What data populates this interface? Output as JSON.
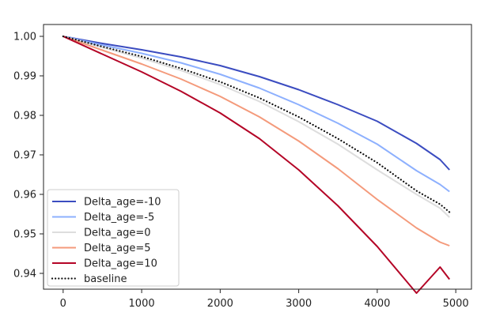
{
  "chart_data": {
    "type": "line",
    "title": "",
    "xlabel": "",
    "ylabel": "",
    "xlim": [
      -250,
      5200
    ],
    "ylim": [
      0.936,
      1.003
    ],
    "x_ticks": [
      0,
      1000,
      2000,
      3000,
      4000,
      5000
    ],
    "x_tick_labels": [
      "0",
      "1000",
      "2000",
      "3000",
      "4000",
      "5000"
    ],
    "y_ticks": [
      0.94,
      0.95,
      0.96,
      0.97,
      0.98,
      0.99,
      1.0
    ],
    "y_tick_labels": [
      "0.94",
      "0.95",
      "0.96",
      "0.97",
      "0.98",
      "0.99",
      "1.00"
    ],
    "grid": false,
    "legend_position": "lower-left",
    "x": [
      0,
      500,
      1000,
      1500,
      2000,
      2500,
      3000,
      3500,
      4000,
      4500,
      4800,
      4920
    ],
    "series": [
      {
        "name": "Delta_age=-10",
        "color": "#3b4cc0",
        "style": "solid",
        "values": [
          1.0,
          0.9982,
          0.9966,
          0.9948,
          0.9926,
          0.9898,
          0.9865,
          0.9827,
          0.9785,
          0.9729,
          0.9688,
          0.9662
        ]
      },
      {
        "name": "Delta_age=-5",
        "color": "#8db0fe",
        "style": "solid",
        "values": [
          1.0,
          0.9978,
          0.9957,
          0.9933,
          0.9904,
          0.9869,
          0.9827,
          0.978,
          0.9727,
          0.966,
          0.9625,
          0.9607
        ]
      },
      {
        "name": "Delta_age=0",
        "color": "#dddddd",
        "style": "solid",
        "values": [
          1.0,
          0.9972,
          0.9945,
          0.9914,
          0.9878,
          0.9835,
          0.9784,
          0.9727,
          0.9662,
          0.96,
          0.9565,
          0.9542
        ]
      },
      {
        "name": "Delta_age=5",
        "color": "#f49a7b",
        "style": "solid",
        "values": [
          1.0,
          0.9965,
          0.993,
          0.9892,
          0.9848,
          0.9796,
          0.9735,
          0.9665,
          0.9587,
          0.9515,
          0.9479,
          0.947
        ]
      },
      {
        "name": "Delta_age=10",
        "color": "#b40426",
        "style": "solid",
        "values": [
          1.0,
          0.9955,
          0.991,
          0.9861,
          0.9806,
          0.9741,
          0.9662,
          0.9571,
          0.9468,
          0.935,
          0.9416,
          0.9385
        ]
      },
      {
        "name": "baseline",
        "color": "#111111",
        "style": "dotted",
        "values": [
          1.0,
          0.9974,
          0.9949,
          0.9919,
          0.9885,
          0.9844,
          0.9796,
          0.9741,
          0.968,
          0.9609,
          0.9575,
          0.9555
        ]
      }
    ]
  }
}
